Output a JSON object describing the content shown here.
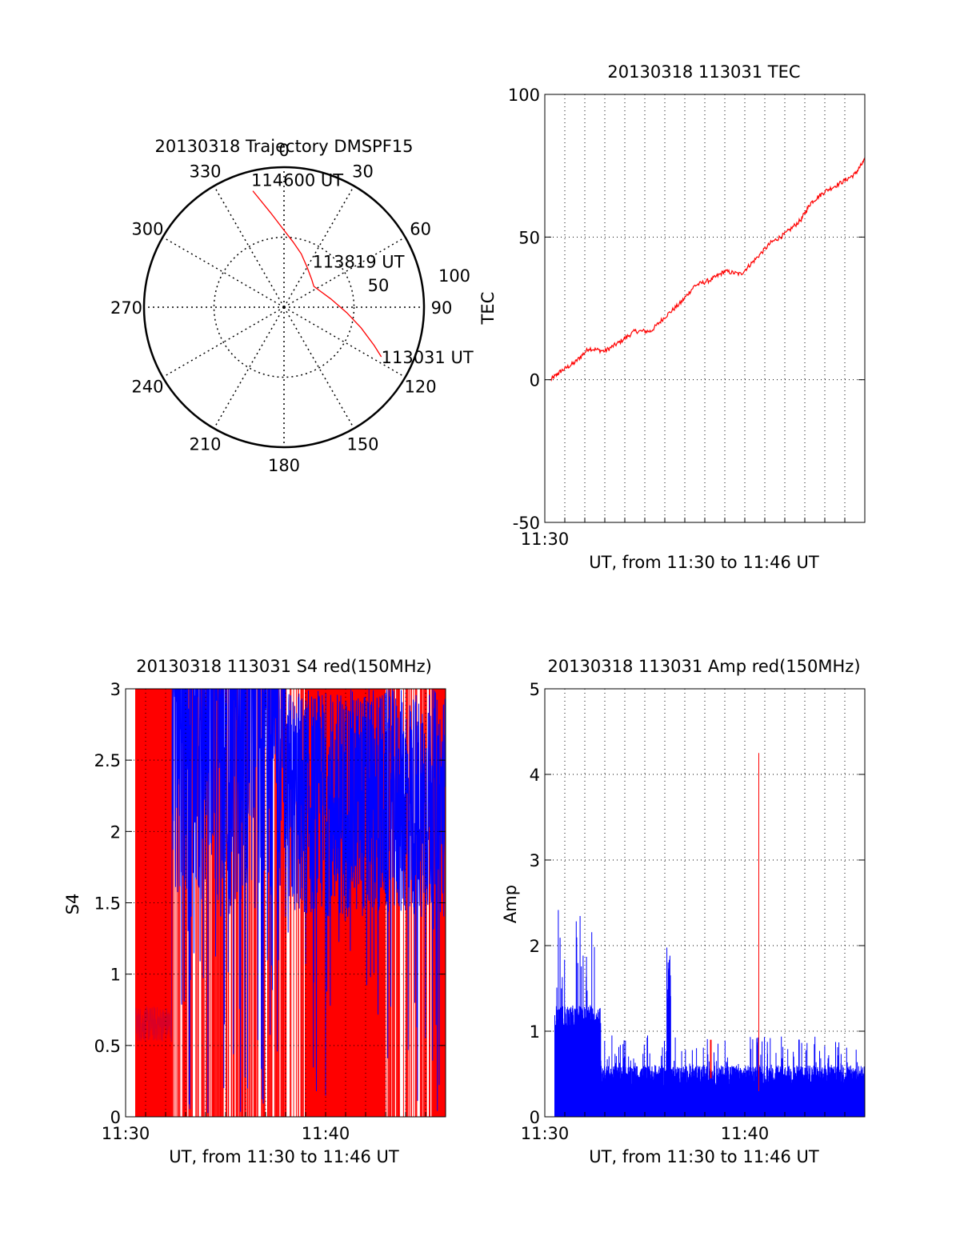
{
  "chart_data": [
    {
      "type": "polar",
      "title": "20130318 Trajectory DMSPF15",
      "angle_labels": [
        "0",
        "30",
        "60",
        "90",
        "120",
        "150",
        "180",
        "210",
        "240",
        "270",
        "300",
        "330"
      ],
      "radius_labels": [
        "50",
        "100"
      ],
      "rlim": [
        0,
        100
      ],
      "series": [
        {
          "name": "trajectory",
          "color": "#ff0000",
          "points": [
            [
              345,
              86
            ],
            [
              352,
              68
            ],
            [
              0,
              55
            ],
            [
              8,
              47
            ],
            [
              18,
              40
            ],
            [
              30,
              33
            ],
            [
              45,
              28
            ],
            [
              55,
              26
            ],
            [
              65,
              28
            ],
            [
              80,
              34
            ],
            [
              95,
              45
            ],
            [
              105,
              57
            ],
            [
              113,
              70
            ],
            [
              117,
              78
            ]
          ]
        }
      ],
      "annotations": [
        {
          "text": "114600 UT",
          "az": 345,
          "r": 86
        },
        {
          "text": "113819 UT",
          "az": 66,
          "r": 30
        },
        {
          "text": "113031 UT",
          "az": 117,
          "r": 78
        }
      ]
    },
    {
      "type": "line",
      "title": "20130318 113031 TEC",
      "xlabel": "UT, from 11:30 to 11:46 UT",
      "ylabel": "TEC",
      "xlim": [
        0,
        16
      ],
      "ylim": [
        -50,
        100
      ],
      "yticks": [
        "100",
        "50",
        "0",
        "-50"
      ],
      "xticks": [
        "11:30"
      ],
      "series": [
        {
          "name": "TEC",
          "color": "#ff0000",
          "x": [
            0.3,
            0.8,
            1.5,
            2.2,
            3.0,
            3.7,
            4.5,
            5.3,
            6.0,
            6.8,
            7.5,
            8.3,
            9.0,
            9.8,
            10.5,
            11.3,
            12.0,
            12.8,
            13.3,
            14.0,
            14.8,
            15.5,
            16.0
          ],
          "y": [
            0,
            3,
            6,
            11,
            10,
            13,
            17,
            17,
            22,
            27,
            33,
            35,
            38,
            37,
            42,
            48,
            51,
            56,
            62,
            66,
            69,
            72,
            77
          ]
        }
      ]
    },
    {
      "type": "line",
      "title": "20130318 113031 S4 red(150MHz)",
      "xlabel": "UT, from 11:30 to 11:46 UT",
      "ylabel": "S4",
      "xlim": [
        0,
        16
      ],
      "ylim": [
        0,
        3
      ],
      "yticks": [
        "3",
        "2.5",
        "2",
        "1.5",
        "1",
        "0.5",
        "0"
      ],
      "xticks": [
        "11:30",
        "11:40"
      ],
      "series": [
        {
          "name": "S4 red",
          "color": "#ff0000",
          "note": "dense saturated scintillation, 0 to 3"
        },
        {
          "name": "S4 blue",
          "color": "#0000ff",
          "note": "~0.65 until 11:32, then 1.5 to 3"
        }
      ]
    },
    {
      "type": "line",
      "title": "20130318 113031 Amp red(150MHz)",
      "xlabel": "UT, from 11:30 to 11:46 UT",
      "ylabel": "Amp",
      "xlim": [
        0,
        16
      ],
      "ylim": [
        0,
        5
      ],
      "yticks": [
        "5",
        "4",
        "3",
        "2",
        "1",
        "0"
      ],
      "xticks": [
        "11:30",
        "11:40"
      ],
      "series": [
        {
          "name": "Amp blue",
          "color": "#0000ff",
          "note": "up to 2.45 before 11:33, ~0.3-0.9 after, spike 2.1 near 11:36"
        },
        {
          "name": "Amp red",
          "color": "#ff0000",
          "note": "spike 4.25 near 11:40:30, small 0.9 near 11:38"
        }
      ]
    }
  ]
}
